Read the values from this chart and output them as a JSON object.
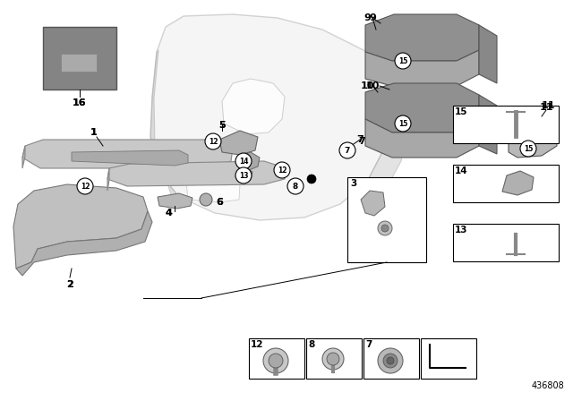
{
  "bg_color": "#ffffff",
  "part_number": "436808",
  "gray_dark": "#888888",
  "gray_mid": "#aaaaaa",
  "gray_light": "#cccccc",
  "gray_part": "#b0b0b0",
  "gray_door": "#d8d8d8",
  "gray_foam": "#999999"
}
